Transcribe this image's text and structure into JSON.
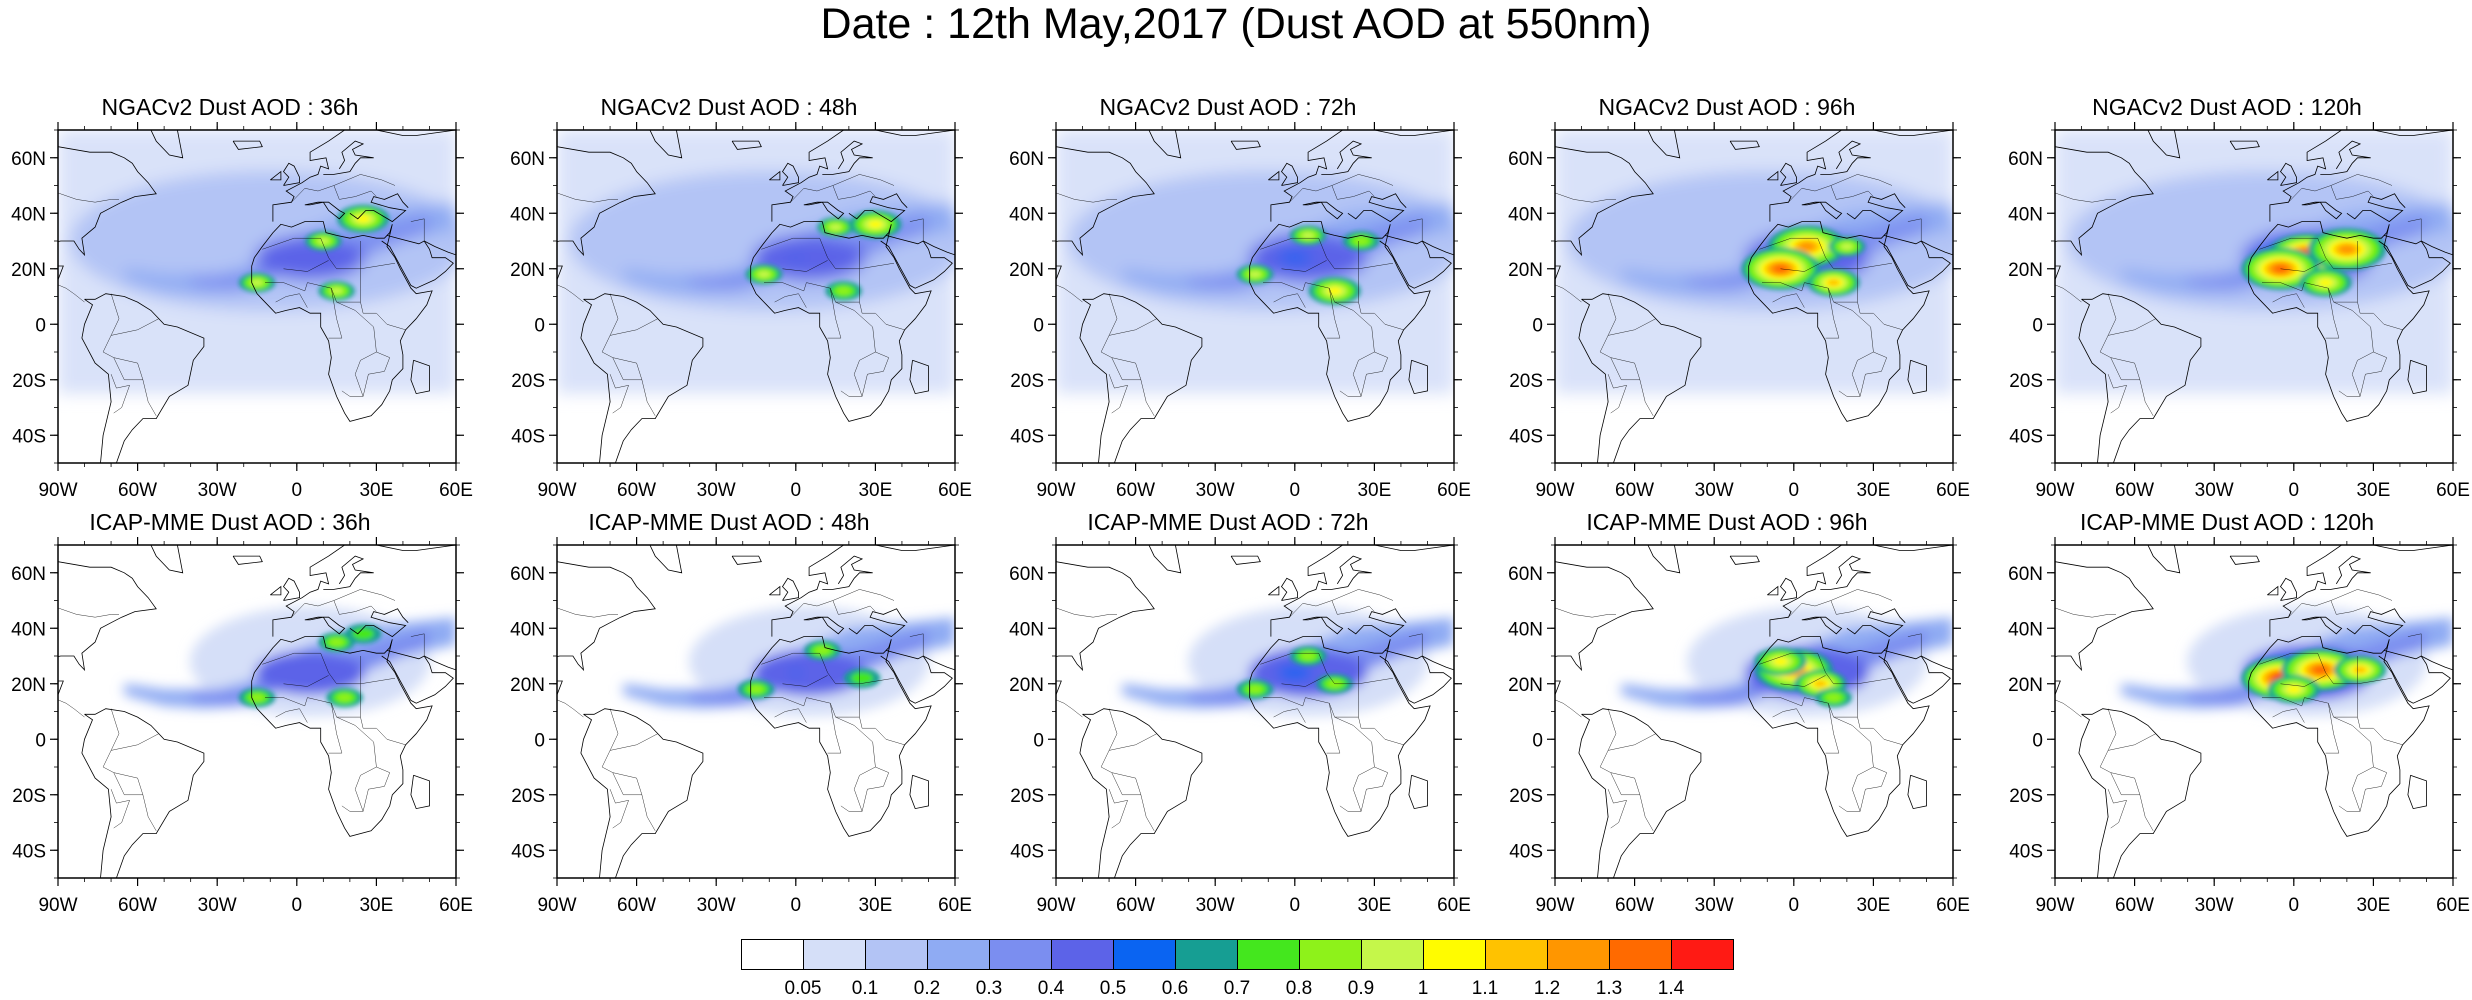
{
  "title": "Date : 12th May,2017 (Dust AOD at 550nm)",
  "panels": [
    {
      "title": "NGACv2 Dust AOD : 36h",
      "model": "NGACv2",
      "lead": 36,
      "row": 0,
      "col": 0,
      "blobs": [
        [
          10,
          30,
          0.9
        ],
        [
          25,
          38,
          1.0
        ],
        [
          -15,
          15,
          0.9
        ],
        [
          15,
          12,
          0.9
        ]
      ]
    },
    {
      "title": "NGACv2 Dust AOD : 48h",
      "model": "NGACv2",
      "lead": 48,
      "row": 0,
      "col": 1,
      "blobs": [
        [
          15,
          35,
          0.9
        ],
        [
          30,
          36,
          1.0
        ],
        [
          -12,
          18,
          0.9
        ],
        [
          18,
          12,
          0.85
        ]
      ]
    },
    {
      "title": "NGACv2 Dust AOD : 72h",
      "model": "NGACv2",
      "lead": 72,
      "row": 0,
      "col": 2,
      "blobs": [
        [
          5,
          32,
          0.95
        ],
        [
          -15,
          18,
          0.9
        ],
        [
          15,
          12,
          1.0
        ],
        [
          25,
          30,
          0.85
        ]
      ]
    },
    {
      "title": "NGACv2 Dust AOD : 96h",
      "model": "NGACv2",
      "lead": 96,
      "row": 0,
      "col": 3,
      "blobs": [
        [
          5,
          28,
          1.2
        ],
        [
          -5,
          20,
          1.3
        ],
        [
          15,
          15,
          1.1
        ],
        [
          20,
          28,
          0.9
        ]
      ]
    },
    {
      "title": "NGACv2 Dust AOD : 120h",
      "model": "NGACv2",
      "lead": 120,
      "row": 0,
      "col": 4,
      "blobs": [
        [
          5,
          25,
          1.4
        ],
        [
          -5,
          20,
          1.3
        ],
        [
          20,
          27,
          1.2
        ],
        [
          12,
          15,
          1.0
        ]
      ]
    },
    {
      "title": "ICAP-MME Dust AOD : 36h",
      "model": "ICAP-MME",
      "lead": 36,
      "row": 1,
      "col": 0,
      "blobs": [
        [
          15,
          35,
          0.8
        ],
        [
          -15,
          15,
          0.85
        ],
        [
          18,
          15,
          0.8
        ],
        [
          25,
          38,
          0.75
        ]
      ]
    },
    {
      "title": "ICAP-MME Dust AOD : 48h",
      "model": "ICAP-MME",
      "lead": 48,
      "row": 1,
      "col": 1,
      "blobs": [
        [
          10,
          32,
          0.8
        ],
        [
          -15,
          18,
          0.85
        ],
        [
          25,
          22,
          0.75
        ]
      ]
    },
    {
      "title": "ICAP-MME Dust AOD : 72h",
      "model": "ICAP-MME",
      "lead": 72,
      "row": 1,
      "col": 2,
      "blobs": [
        [
          5,
          30,
          0.85
        ],
        [
          -15,
          18,
          0.85
        ],
        [
          15,
          20,
          0.8
        ]
      ]
    },
    {
      "title": "ICAP-MME Dust AOD : 96h",
      "model": "ICAP-MME",
      "lead": 96,
      "row": 1,
      "col": 3,
      "blobs": [
        [
          0,
          25,
          1.2
        ],
        [
          10,
          20,
          1.1
        ],
        [
          -5,
          28,
          1.0
        ],
        [
          15,
          15,
          0.85
        ]
      ]
    },
    {
      "title": "ICAP-MME Dust AOD : 120h",
      "model": "ICAP-MME",
      "lead": 120,
      "row": 1,
      "col": 4,
      "blobs": [
        [
          -5,
          22,
          1.4
        ],
        [
          10,
          25,
          1.3
        ],
        [
          25,
          25,
          1.1
        ],
        [
          0,
          18,
          1.0
        ]
      ]
    }
  ],
  "lon_ticks": [
    "90W",
    "60W",
    "30W",
    "0",
    "30E",
    "60E"
  ],
  "lon_values": [
    -90,
    -60,
    -30,
    0,
    30,
    60
  ],
  "lat_ticks": [
    "60N",
    "40N",
    "20N",
    "0",
    "20S",
    "40S"
  ],
  "lat_values": [
    60,
    40,
    20,
    0,
    -20,
    -40
  ],
  "lon_range": [
    -90,
    60
  ],
  "lat_range": [
    -50,
    70
  ],
  "colorbar": {
    "levels": [
      "0.05",
      "0.1",
      "0.2",
      "0.3",
      "0.4",
      "0.5",
      "0.6",
      "0.7",
      "0.8",
      "0.9",
      "1",
      "1.1",
      "1.2",
      "1.3",
      "1.4"
    ],
    "colors": [
      "#ffffff",
      "#d5dff8",
      "#b3c4f5",
      "#8fabf3",
      "#7b8ef0",
      "#5c63e8",
      "#0a64f2",
      "#169e93",
      "#44e71e",
      "#8ef21a",
      "#c5f74a",
      "#fffc00",
      "#ffc200",
      "#ff9600",
      "#ff6a00",
      "#ff1a14"
    ]
  }
}
